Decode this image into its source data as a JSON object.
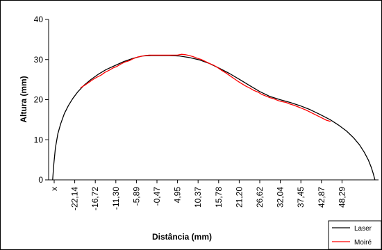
{
  "chart_data": {
    "type": "line",
    "xlabel": "Distância (mm)",
    "ylabel": "Altura (mm)",
    "ylim": [
      0,
      40
    ],
    "yticks": [
      0,
      10,
      20,
      30,
      40
    ],
    "xticks": [
      "x",
      "-22,14",
      "-16,72",
      "-11,30",
      "-5,89",
      "-0,47",
      "4,95",
      "10,37",
      "15,78",
      "21,20",
      "26,62",
      "32,04",
      "37,45",
      "42,87",
      "48,29"
    ],
    "xlim": [
      -27.5,
      54.5
    ],
    "grid": false,
    "legend_position": "bottom-right",
    "series": [
      {
        "name": "Laser",
        "color": "#000000",
        "x": [
          -26.5,
          -26.2,
          -25.8,
          -25.2,
          -24.5,
          -23.6,
          -22.6,
          -21.5,
          -20.2,
          -18.7,
          -17.0,
          -15.2,
          -13.2,
          -11.0,
          -8.8,
          -6.5,
          -4.2,
          -2.0,
          0.0,
          2.5,
          5.0,
          7.5,
          10.0,
          12.5,
          15.0,
          17.5,
          20.0,
          22.5,
          25.0,
          27.5,
          30.0,
          32.5,
          35.0,
          37.5,
          40.0,
          42.5,
          44.5,
          46.5,
          48.3,
          49.8,
          51.0,
          52.0,
          52.7,
          53.2,
          53.6
        ],
        "values": [
          0,
          4,
          8,
          11.5,
          14,
          16.5,
          18.5,
          20.3,
          22,
          23.6,
          25,
          26.3,
          27.5,
          28.5,
          29.5,
          30.3,
          30.9,
          31,
          31,
          31,
          30.9,
          30.5,
          29.9,
          29,
          27.8,
          26.5,
          25,
          23.5,
          22,
          20.8,
          20,
          19.3,
          18.5,
          17.5,
          16.3,
          15,
          13.7,
          12.2,
          10.5,
          8.7,
          6.8,
          4.9,
          3.1,
          1.5,
          0
        ]
      },
      {
        "name": "Moiré",
        "color": "#ff0000",
        "x": [
          -19.5,
          -18.5,
          -17.5,
          -16.5,
          -15.5,
          -14.5,
          -13.5,
          -12.5,
          -11.5,
          -10.5,
          -9.5,
          -8.5,
          -7.5,
          -6.5,
          -5.5,
          -4.5,
          -3.5,
          -2.5,
          -1.5,
          -0.5,
          0.5,
          1.5,
          2.5,
          3.5,
          4.5,
          5.5,
          6.5,
          7.5,
          8.5,
          9.5,
          10.5,
          11.5,
          12.5,
          13.5,
          14.5,
          15.5,
          16.5,
          17.5,
          18.5,
          19.5,
          20.5,
          21.5,
          22.5,
          23.5,
          24.5,
          25.5,
          26.5,
          27.5,
          28.5,
          29.5,
          30.5,
          31.5,
          32.5,
          33.5,
          34.5,
          35.5,
          36.5,
          37.5,
          38.5,
          39.5,
          40.5,
          41.5,
          42.5
        ],
        "values": [
          23,
          23.6,
          24.3,
          25,
          25.6,
          26.1,
          26.8,
          27.3,
          27.9,
          28.3,
          28.9,
          29.4,
          29.7,
          30.2,
          30.6,
          30.8,
          31,
          31.1,
          31.1,
          31.1,
          31.1,
          31.1,
          31.1,
          31.1,
          31.1,
          31.3,
          31.2,
          31,
          30.7,
          30.3,
          30,
          29.5,
          29,
          28.6,
          28,
          27.3,
          26.7,
          26,
          25.3,
          24.6,
          24,
          23.4,
          22.9,
          22.3,
          21.9,
          21.3,
          20.9,
          20.5,
          20.2,
          19.8,
          19.5,
          19.3,
          18.9,
          18.6,
          18.2,
          17.8,
          17.4,
          16.9,
          16.4,
          15.9,
          15.4,
          14.9,
          14.6
        ]
      }
    ]
  }
}
